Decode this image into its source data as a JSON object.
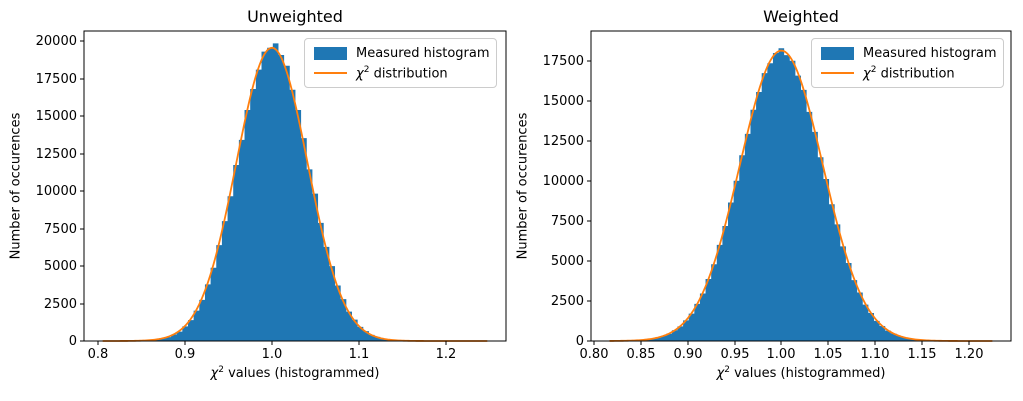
{
  "figure": {
    "background": "#ffffff"
  },
  "chart_data": [
    {
      "type": "histogram+line",
      "title": "Unweighted",
      "xlabel": {
        "chi": "χ",
        "sup": "2",
        "rest": " values (histogrammed)"
      },
      "ylabel": "Number of occurences",
      "xlim": [
        0.784,
        1.269
      ],
      "ylim": [
        0,
        20667
      ],
      "grid": false,
      "xticks": [
        0.8,
        0.9,
        1.0,
        1.1,
        1.2
      ],
      "xtick_labels": [
        "0.8",
        "0.9",
        "1.0",
        "1.1",
        "1.2"
      ],
      "yticks": [
        0,
        2500,
        5000,
        7500,
        10000,
        12500,
        15000,
        17500,
        20000
      ],
      "ytick_labels": [
        "0",
        "2500",
        "5000",
        "7500",
        "10000",
        "12500",
        "15000",
        "17500",
        "20000"
      ],
      "legend": {
        "position": "upper right",
        "items": [
          {
            "type": "patch",
            "label": "Measured histogram"
          },
          {
            "type": "line",
            "label_chi": "χ",
            "label_sup": "2",
            "label_rest": " distribution"
          }
        ]
      },
      "histogram": {
        "bin_start": 0.806,
        "bin_width": 0.0065,
        "counts": [
          0,
          1,
          2,
          3,
          6,
          11,
          18,
          36,
          57,
          103,
          170,
          259,
          431,
          628,
          979,
          1389,
          2026,
          2741,
          3772,
          4880,
          6392,
          7990,
          9651,
          11732,
          13410,
          15403,
          16801,
          18089,
          19292,
          19550,
          19838,
          19065,
          18352,
          16749,
          15397,
          13523,
          11440,
          9826,
          7876,
          6272,
          4992,
          3698,
          2789,
          1959,
          1426,
          943,
          662,
          407,
          274,
          158,
          105,
          62,
          32,
          21,
          9,
          6,
          3,
          2,
          1,
          1,
          0,
          0,
          0,
          0,
          0,
          0,
          0,
          0
        ]
      },
      "curve": {
        "shape": "gaussian",
        "mu": 1.0,
        "sigma": 0.041,
        "peak": 19550,
        "x_start": 0.806,
        "x_end": 1.247
      },
      "colors": {
        "histogram": "#1f77b4",
        "curve": "#ff7f0e"
      }
    },
    {
      "type": "histogram+line",
      "title": "Weighted",
      "xlabel": {
        "chi": "χ",
        "sup": "2",
        "rest": " values (histogrammed)"
      },
      "ylabel": "Number of occurences",
      "xlim": [
        0.7966,
        1.2454
      ],
      "ylim": [
        0,
        19375
      ],
      "grid": false,
      "xticks": [
        0.8,
        0.85,
        0.9,
        0.95,
        1.0,
        1.05,
        1.1,
        1.15,
        1.2
      ],
      "xtick_labels": [
        "0.80",
        "0.85",
        "0.90",
        "0.95",
        "1.00",
        "1.05",
        "1.10",
        "1.15",
        "1.20"
      ],
      "yticks": [
        0,
        2500,
        5000,
        7500,
        10000,
        12500,
        15000,
        17500
      ],
      "ytick_labels": [
        "0",
        "2500",
        "5000",
        "7500",
        "10000",
        "12500",
        "15000",
        "17500"
      ],
      "legend": {
        "position": "upper right",
        "items": [
          {
            "type": "patch",
            "label": "Measured histogram"
          },
          {
            "type": "line",
            "label_chi": "χ",
            "label_sup": "2",
            "label_rest": " distribution"
          }
        ]
      },
      "histogram": {
        "bin_start": 0.817,
        "bin_width": 0.006,
        "counts": [
          5,
          8,
          13,
          23,
          36,
          61,
          90,
          145,
          210,
          322,
          455,
          668,
          914,
          1291,
          1712,
          2321,
          2972,
          3874,
          4797,
          6010,
          7189,
          8656,
          10012,
          11613,
          12946,
          14452,
          15560,
          16741,
          17362,
          18002,
          18295,
          17870,
          17512,
          16589,
          15695,
          14318,
          13074,
          11481,
          10128,
          8549,
          7291,
          5914,
          4874,
          3802,
          3034,
          2273,
          1751,
          1258,
          941,
          648,
          470,
          310,
          219,
          138,
          95,
          57,
          38,
          21,
          15,
          8,
          5,
          3,
          2,
          1,
          1,
          0,
          0,
          0
        ]
      },
      "curve": {
        "shape": "gaussian",
        "mu": 1.0,
        "sigma": 0.0443,
        "peak": 18150,
        "x_start": 0.817,
        "x_end": 1.225
      },
      "colors": {
        "histogram": "#1f77b4",
        "curve": "#ff7f0e"
      }
    }
  ]
}
